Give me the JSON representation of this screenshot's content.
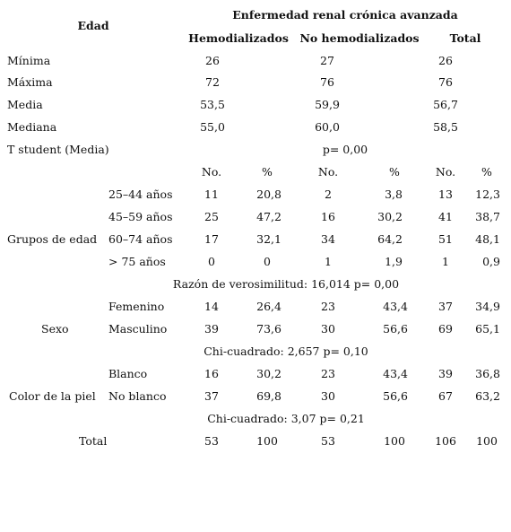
{
  "header": {
    "edad": "Edad",
    "group": "Enfermedad renal crónica avanzada",
    "col1": "Hemodializados",
    "col2": "No hemodializados",
    "col3": "Total"
  },
  "stats": [
    {
      "label": "Mínima",
      "v1": "26",
      "v2": "27",
      "v3": "26"
    },
    {
      "label": "Máxima",
      "v1": "72",
      "v2": "76",
      "v3": "76"
    },
    {
      "label": "Media",
      "v1": "53,5",
      "v2": "59,9",
      "v3": "56,7"
    },
    {
      "label": "Mediana",
      "v1": "55,0",
      "v2": "60,0",
      "v3": "58,5"
    }
  ],
  "tstudent": {
    "label": "T student (Media)",
    "value": "p= 0,00"
  },
  "subheader": {
    "no": "No.",
    "pct": "%"
  },
  "age": {
    "group_label": "Grupos de edad",
    "rows": [
      {
        "label": "25–44 años",
        "n1": "11",
        "p1": "20,8",
        "n2": "2",
        "p2": "3,8",
        "n3": "13",
        "p3": "12,3"
      },
      {
        "label": "45–59 años",
        "n1": "25",
        "p1": "47,2",
        "n2": "16",
        "p2": "30,2",
        "n3": "41",
        "p3": "38,7"
      },
      {
        "label": "60–74 años",
        "n1": "17",
        "p1": "32,1",
        "n2": "34",
        "p2": "64,2",
        "n3": "51",
        "p3": "48,1"
      },
      {
        "label": "> 75 años",
        "n1": "0",
        "p1": "0",
        "n2": "1",
        "p2": "1,9",
        "n3": "1",
        "p3": "0,9"
      }
    ],
    "test": "Razón de verosimilitud: 16,014 p= 0,00"
  },
  "sex": {
    "group_label": "Sexo",
    "rows": [
      {
        "label": "Femenino",
        "n1": "14",
        "p1": "26,4",
        "n2": "23",
        "p2": "43,4",
        "n3": "37",
        "p3": "34,9"
      },
      {
        "label": "Masculino",
        "n1": "39",
        "p1": "73,6",
        "n2": "30",
        "p2": "56,6",
        "n3": "69",
        "p3": "65,1"
      }
    ],
    "test": "Chi-cuadrado: 2,657 p= 0,10"
  },
  "skin": {
    "group_label": "Color de la piel",
    "rows": [
      {
        "label": "Blanco",
        "n1": "16",
        "p1": "30,2",
        "n2": "23",
        "p2": "43,4",
        "n3": "39",
        "p3": "36,8"
      },
      {
        "label": "No blanco",
        "n1": "37",
        "p1": "69,8",
        "n2": "30",
        "p2": "56,6",
        "n3": "67",
        "p3": "63,2"
      }
    ],
    "test": "Chi-cuadrado: 3,07 p= 0,21"
  },
  "total": {
    "label": "Total",
    "n1": "53",
    "p1": "100",
    "n2": "53",
    "p2": "100",
    "n3": "106",
    "p3": "100"
  }
}
